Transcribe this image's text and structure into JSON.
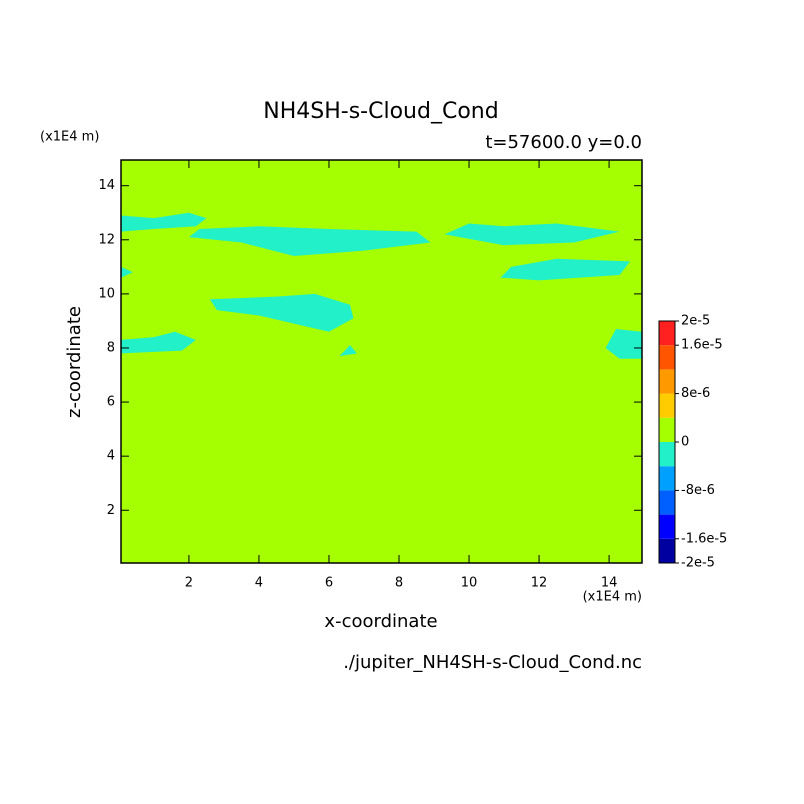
{
  "chart_data": {
    "type": "contour",
    "title": "NH4SH-s-Cloud_Cond",
    "subtitle": "t=57600.0 y=0.0",
    "x_label": "x-coordinate",
    "y_label": "z-coordinate",
    "x_unit": "(x1E4 m)",
    "y_unit": "(x1E4 m)",
    "footer": "./jupiter_NH4SH-s-Cloud_Cond.nc",
    "xlim": [
      0.06,
      14.94
    ],
    "ylim": [
      0.05,
      14.95
    ],
    "xticks": [
      2,
      4,
      6,
      8,
      10,
      12,
      14
    ],
    "yticks": [
      2,
      4,
      6,
      8,
      10,
      12,
      14
    ],
    "field_color": "#a5ff00",
    "regions": [
      {
        "color": "#22f0c8",
        "x": [
          0.06,
          0.06,
          1.0,
          2.0,
          2.5,
          2.2,
          1.0
        ],
        "z": [
          12.3,
          12.9,
          12.8,
          13.0,
          12.8,
          12.5,
          12.4
        ]
      },
      {
        "color": "#22f0c8",
        "x": [
          2.0,
          2.3,
          4.0,
          6.0,
          8.5,
          8.9,
          7.0,
          5.0,
          3.5
        ],
        "z": [
          12.1,
          12.4,
          12.5,
          12.4,
          12.3,
          11.9,
          11.6,
          11.4,
          11.9
        ]
      },
      {
        "color": "#22f0c8",
        "x": [
          9.3,
          10.0,
          11.0,
          12.5,
          14.3,
          13.0,
          11.0
        ],
        "z": [
          12.2,
          12.6,
          12.5,
          12.6,
          12.3,
          11.9,
          11.8
        ]
      },
      {
        "color": "#22f0c8",
        "x": [
          10.9,
          11.2,
          12.5,
          14.6,
          14.3,
          12.0
        ],
        "z": [
          10.6,
          11.0,
          11.3,
          11.2,
          10.7,
          10.5
        ]
      },
      {
        "color": "#22f0c8",
        "x": [
          0.06,
          0.06,
          0.4
        ],
        "z": [
          10.6,
          11.0,
          10.8
        ]
      },
      {
        "color": "#22f0c8",
        "x": [
          2.6,
          4.5,
          5.6,
          6.6,
          6.7,
          6.0,
          5.0,
          4.0,
          2.8
        ],
        "z": [
          9.8,
          9.9,
          10.0,
          9.6,
          9.1,
          8.6,
          8.9,
          9.2,
          9.4
        ]
      },
      {
        "color": "#22f0c8",
        "x": [
          0.06,
          0.06,
          1.0,
          1.6,
          2.2,
          1.8
        ],
        "z": [
          7.8,
          8.3,
          8.4,
          8.6,
          8.3,
          7.9
        ]
      },
      {
        "color": "#22f0c8",
        "x": [
          13.9,
          14.2,
          14.94,
          14.94,
          14.3
        ],
        "z": [
          8.0,
          8.7,
          8.6,
          7.6,
          7.6
        ]
      },
      {
        "color": "#22f0c8",
        "x": [
          6.3,
          6.6,
          6.8
        ],
        "z": [
          7.7,
          8.1,
          7.8
        ]
      }
    ],
    "colorbar": {
      "levels": [
        -2e-05,
        -1.6e-05,
        -1.2e-05,
        -8e-06,
        -4e-06,
        0,
        4e-06,
        8e-06,
        1.2e-05,
        1.6e-05,
        2e-05
      ],
      "colors": [
        "#0000a0",
        "#0000ff",
        "#0060ff",
        "#00a0ff",
        "#22f0c8",
        "#a5ff00",
        "#ffcc00",
        "#ff9900",
        "#ff5500",
        "#ff2020"
      ],
      "ticks": [
        {
          "value": -2e-05,
          "label": "-2e-5"
        },
        {
          "value": -1.6e-05,
          "label": "-1.6e-5"
        },
        {
          "value": -8e-06,
          "label": "-8e-6"
        },
        0,
        {
          "value": 8e-06,
          "label": "8e-6"
        },
        {
          "value": 1.6e-05,
          "label": "1.6e-5"
        },
        {
          "value": 2e-05,
          "label": "2e-5"
        }
      ]
    }
  }
}
